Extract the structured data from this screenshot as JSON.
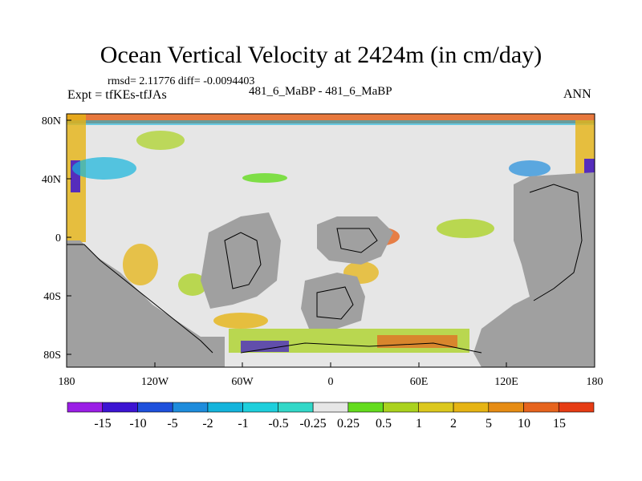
{
  "title": "Ocean Vertical Velocity at 2424m (in cm/day)",
  "stats_line": "rmsd= 2.11776 diff= -0.0094403",
  "experiment": "Expt = tfKEs-tfJAs",
  "case_label": "481_6_MaBP - 481_6_MaBP",
  "season": "ANN",
  "map": {
    "land_color": "#a0a0a0",
    "ocean_neutral_color": "#e6e6e6",
    "x_ticks": [
      "180",
      "120W",
      "60W",
      "0",
      "60E",
      "120E",
      "180"
    ],
    "y_ticks": [
      "80N",
      "40N",
      "0",
      "40S",
      "80S"
    ]
  },
  "colorbar": {
    "colors": [
      "#9b1ee6",
      "#3c14d2",
      "#1e50dc",
      "#1e8cdc",
      "#14b4dc",
      "#1ecfdc",
      "#32d8c8",
      "#e6e6e6",
      "#64dc1e",
      "#aad21e",
      "#dcc81e",
      "#e6b414",
      "#e68c14",
      "#e6641e",
      "#e63c14"
    ],
    "labels": [
      "-15",
      "-10",
      "-5",
      "-2",
      "-1",
      "-0.5",
      "-0.25",
      "0.25",
      "0.5",
      "1",
      "2",
      "5",
      "10",
      "15"
    ]
  }
}
